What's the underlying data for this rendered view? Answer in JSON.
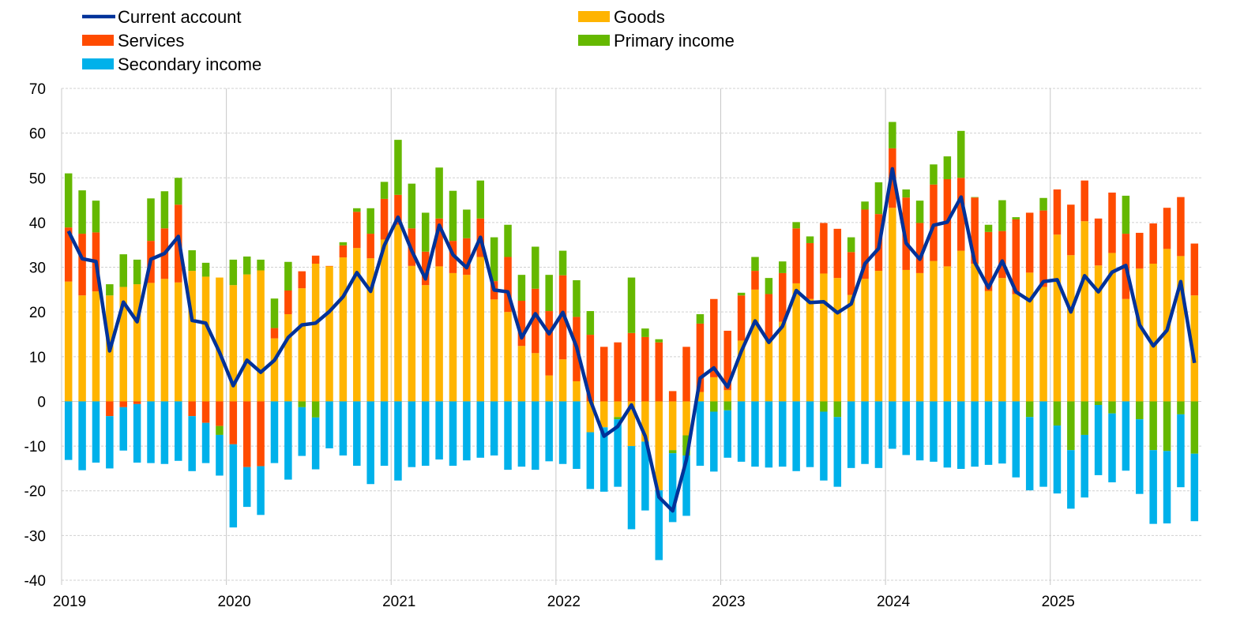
{
  "chart_data": {
    "type": "bar",
    "stacked": true,
    "xlabel": "",
    "ylabel": "",
    "title": "",
    "ylim": [
      -40,
      70
    ],
    "yticks": [
      "70",
      "60",
      "50",
      "40",
      "30",
      "20",
      "10",
      "0",
      "-10",
      "-20",
      "-30",
      "-40"
    ],
    "xticks": [
      "2019",
      "2020",
      "2021",
      "2022",
      "2023",
      "2024",
      "2025"
    ],
    "x_range": [
      "2019-01",
      "2025-11"
    ],
    "frequency": "monthly",
    "grid": true,
    "legend_position": "top",
    "series": [
      {
        "name": "Goods",
        "kind": "bar",
        "color": "#FFB400",
        "values": [
          26.8,
          23.7,
          24.6,
          23.7,
          25.6,
          26.2,
          26.5,
          27.4,
          26.6,
          29.2,
          27.9,
          27.7,
          26.0,
          28.4,
          29.3,
          14.1,
          19.5,
          25.3,
          30.8,
          30.2,
          32.2,
          34.3,
          32.0,
          36.2,
          39.5,
          30.3,
          26.0,
          30.2,
          28.7,
          28.3,
          32.3,
          22.8,
          20.0,
          12.4,
          10.8,
          5.8,
          9.4,
          4.5,
          -6.9,
          -5.8,
          -3.5,
          -10.0,
          -9.0,
          -19.9,
          -10.9,
          -7.6,
          2.1,
          5.4,
          2.5,
          13.6,
          25.0,
          13.8,
          17.8,
          26.4,
          22.9,
          28.6,
          27.6,
          23.8,
          27.4,
          29.2,
          43.3,
          29.4,
          28.7,
          31.4,
          30.2,
          33.7,
          30.8,
          24.7,
          27.6,
          24.0,
          28.8,
          25.6,
          37.3,
          32.7,
          40.3,
          30.4,
          33.2,
          22.9,
          29.7,
          30.8,
          34.1,
          32.5,
          23.7
        ]
      },
      {
        "name": "Services",
        "kind": "bar",
        "color": "#FF4B00",
        "values": [
          12.1,
          13.8,
          13.2,
          -3.3,
          -1.3,
          -0.6,
          9.4,
          11.3,
          17.4,
          -3.3,
          -4.8,
          -5.5,
          -9.6,
          -14.7,
          -14.5,
          2.3,
          5.3,
          3.8,
          1.8,
          0.1,
          2.7,
          8.1,
          5.5,
          9.1,
          6.7,
          8.4,
          7.5,
          10.7,
          7.2,
          8.2,
          8.6,
          4.1,
          12.3,
          10.1,
          14.4,
          14.4,
          18.8,
          14.4,
          14.9,
          12.2,
          13.2,
          15.3,
          14.4,
          13.2,
          2.3,
          12.2,
          15.3,
          17.5,
          13.3,
          10.1,
          4.2,
          10.2,
          10.9,
          12.3,
          12.5,
          11.3,
          11.0,
          9.6,
          15.5,
          12.7,
          13.3,
          16.2,
          11.2,
          17.1,
          19.5,
          16.3,
          14.8,
          13.2,
          10.5,
          16.7,
          13.4,
          17.1,
          10.1,
          11.3,
          9.1,
          10.5,
          13.5,
          14.6,
          8.0,
          9.0,
          9.2,
          13.2,
          11.6
        ]
      },
      {
        "name": "Primary income",
        "kind": "bar",
        "color": "#65B800",
        "values": [
          12.1,
          9.7,
          7.1,
          2.5,
          7.3,
          5.5,
          9.5,
          8.3,
          6.0,
          4.6,
          3.1,
          -2.0,
          5.7,
          4.0,
          2.4,
          6.6,
          6.4,
          -1.3,
          -3.6,
          0,
          0.7,
          0.8,
          5.7,
          3.8,
          12.3,
          10.0,
          8.7,
          11.4,
          11.2,
          6.4,
          8.5,
          9.8,
          7.2,
          5.8,
          9.4,
          8.1,
          5.5,
          8.2,
          5.3,
          0,
          -0.5,
          12.4,
          1.9,
          0.7,
          -0.7,
          -4.5,
          2.1,
          -2.3,
          -2.0,
          0.6,
          3.1,
          3.6,
          2.6,
          1.4,
          1.5,
          -2.3,
          -3.5,
          3.3,
          1.8,
          7.1,
          5.9,
          1.8,
          5.0,
          4.5,
          5.1,
          10.5,
          0.1,
          1.6,
          6.9,
          0.5,
          -3.5,
          2.8,
          -5.4,
          -10.9,
          -7.5,
          -0.8,
          -2.7,
          8.5,
          -4.0,
          -10.9,
          -11.1,
          -2.9,
          -11.7
        ]
      },
      {
        "name": "Secondary income",
        "kind": "bar",
        "color": "#00B1EA",
        "values": [
          -13.1,
          -15.4,
          -13.7,
          -11.7,
          -9.7,
          -13.1,
          -13.8,
          -14.0,
          -13.3,
          -12.3,
          -9.0,
          -9.1,
          -18.6,
          -8.9,
          -10.9,
          -13.8,
          -17.5,
          -10.9,
          -11.6,
          -10.5,
          -12.1,
          -14.4,
          -18.5,
          -14.4,
          -17.7,
          -14.7,
          -14.4,
          -13.0,
          -14.4,
          -13.2,
          -12.6,
          -12.1,
          -15.3,
          -14.6,
          -15.3,
          -13.4,
          -14.0,
          -15.1,
          -12.7,
          -14.4,
          -15.1,
          -18.6,
          -15.4,
          -15.6,
          -15.4,
          -13.5,
          -14.4,
          -13.4,
          -10.6,
          -13.5,
          -14.6,
          -14.8,
          -14.6,
          -15.6,
          -14.7,
          -15.4,
          -15.6,
          -14.9,
          -14.0,
          -14.9,
          -10.6,
          -12.0,
          -13.2,
          -13.5,
          -14.8,
          -15.1,
          -14.6,
          -14.2,
          -13.9,
          -17.0,
          -16.4,
          -19.1,
          -15.2,
          -13.1,
          -14.0,
          -15.7,
          -15.4,
          -15.5,
          -16.7,
          -16.5,
          -16.2,
          -16.3,
          -15.1
        ]
      },
      {
        "name": "Current account",
        "kind": "line",
        "color": "#003299",
        "values": [
          38.1,
          31.9,
          31.3,
          11.3,
          22.2,
          17.8,
          31.8,
          33.1,
          36.9,
          18.1,
          17.5,
          11.0,
          3.5,
          9.2,
          6.5,
          9.2,
          14.3,
          17.1,
          17.5,
          20.1,
          23.4,
          28.8,
          24.6,
          34.9,
          41.2,
          33.7,
          27.4,
          39.4,
          32.8,
          29.9,
          36.7,
          24.9,
          24.5,
          14.2,
          19.6,
          15.1,
          19.9,
          12.2,
          0.3,
          -7.8,
          -5.6,
          -0.8,
          -7.8,
          -21.4,
          -24.5,
          -13.1,
          5.2,
          7.5,
          3.2,
          11.2,
          18.0,
          13.2,
          16.8,
          24.8,
          22.1,
          22.3,
          19.8,
          21.8,
          30.8,
          34.2,
          52.0,
          35.4,
          31.8,
          39.4,
          40.1,
          45.7,
          31.1,
          25.4,
          31.4,
          24.5,
          22.5,
          26.8,
          27.2,
          20.0,
          28.1,
          24.5,
          28.9,
          30.4,
          17.1,
          12.4,
          15.9,
          26.8,
          8.6
        ]
      }
    ],
    "legend": [
      {
        "label": "Current account",
        "series": 4,
        "marker": "line"
      },
      {
        "label": "Goods",
        "series": 0,
        "marker": "box"
      },
      {
        "label": "Services",
        "series": 1,
        "marker": "box"
      },
      {
        "label": "Primary income",
        "series": 2,
        "marker": "box"
      },
      {
        "label": "Secondary income",
        "series": 3,
        "marker": "box"
      }
    ]
  }
}
